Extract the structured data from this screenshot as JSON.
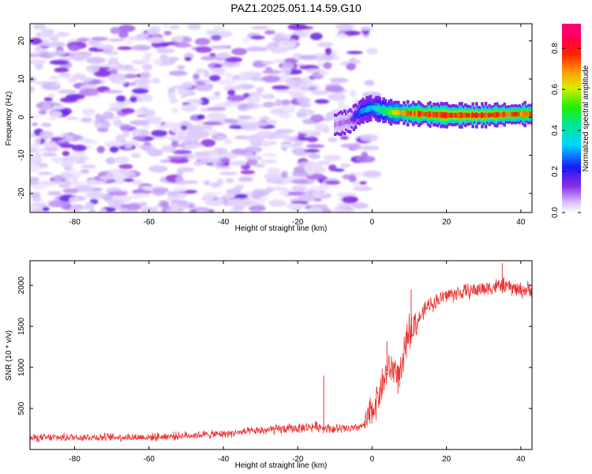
{
  "title": "PAZ1.2025.051.14.59.G10",
  "chart_data": [
    {
      "type": "heatmap",
      "title": "PAZ1.2025.051.14.59.G10",
      "xlabel": "Height of straight line (km)",
      "ylabel": "Frequency (Hz)",
      "xlim": [
        -92,
        43
      ],
      "ylim": [
        -25,
        24.5
      ],
      "x_ticks": [
        -80,
        -60,
        -40,
        -20,
        0,
        20,
        40
      ],
      "y_ticks": [
        -20,
        -10,
        0,
        10,
        20
      ],
      "colorbar": {
        "label": "Normalized spectral amplitude",
        "range": [
          0.0,
          0.92
        ],
        "ticks": [
          0.0,
          0.2,
          0.4,
          0.6,
          0.8
        ],
        "colormap": "rainbow (white-lavender-violet-blue-cyan-green-yellow-orange-red-magenta)"
      },
      "features": [
        {
          "name": "noise region",
          "x_range": [
            -92,
            0
          ],
          "y_range": [
            -25,
            24
          ],
          "amplitude": [
            0.0,
            0.15
          ]
        },
        {
          "name": "signal band",
          "x": [
            -10,
            -6,
            -3,
            0,
            5,
            10,
            20,
            30,
            40,
            43
          ],
          "frequency": [
            -2,
            -1,
            1.5,
            2.5,
            1.3,
            1.0,
            0.5,
            0.5,
            0.8,
            0.8
          ],
          "peak_amplitude": [
            0.1,
            0.12,
            0.3,
            0.35,
            0.6,
            0.8,
            0.85,
            0.85,
            0.8,
            0.8
          ]
        }
      ]
    },
    {
      "type": "line",
      "xlabel": "Height of straight line (km)",
      "ylabel": "SNR (10 * v/v)",
      "xlim": [
        -92,
        43
      ],
      "ylim": [
        0,
        2300
      ],
      "x_ticks": [
        -80,
        -60,
        -40,
        -20,
        0,
        20,
        40
      ],
      "y_ticks": [
        500,
        1000,
        1500,
        2000
      ],
      "color": "#ee3333",
      "series": [
        {
          "x": [
            -92,
            -80,
            -70,
            -60,
            -50,
            -40,
            -30,
            -20,
            -15,
            -10,
            -5,
            -2,
            0,
            2,
            4,
            6,
            7,
            8,
            9,
            10,
            12,
            15,
            20,
            25,
            30,
            35,
            40,
            43
          ],
          "values": [
            140,
            150,
            150,
            150,
            170,
            190,
            230,
            260,
            280,
            250,
            250,
            300,
            470,
            700,
            950,
            1000,
            900,
            900,
            1300,
            1450,
            1550,
            1750,
            1880,
            1920,
            1960,
            2000,
            1940,
            1950
          ]
        }
      ],
      "spikes": [
        {
          "x": -13,
          "value": 900
        },
        {
          "x": 4,
          "value": 1320
        },
        {
          "x": 10.5,
          "value": 1950
        },
        {
          "x": 35,
          "value": 2270
        }
      ]
    }
  ]
}
